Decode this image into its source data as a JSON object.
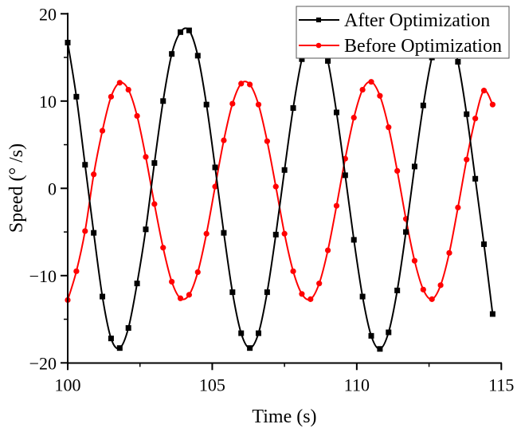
{
  "chart_data": {
    "type": "line",
    "title": "",
    "xlabel": "Time (s)",
    "ylabel": "Speed (° /s)",
    "xlim": [
      100,
      115
    ],
    "ylim": [
      -20,
      20
    ],
    "xticks": [
      100,
      105,
      110,
      115
    ],
    "xtick_labels": [
      "100",
      "105",
      "110",
      "115"
    ],
    "xminor_ticks": [
      102.5,
      107.5,
      112.5
    ],
    "yticks": [
      -20,
      -10,
      0,
      10,
      20
    ],
    "ytick_labels": [
      "−20",
      "−10",
      "0",
      "10",
      "20"
    ],
    "yminor_ticks": [
      -15,
      -5,
      5,
      15
    ],
    "grid": false,
    "legend_position": "top-right",
    "x": [
      100.0,
      100.3,
      100.6,
      100.9,
      101.2,
      101.5,
      101.8,
      102.1,
      102.4,
      102.7,
      103.0,
      103.3,
      103.6,
      103.9,
      104.2,
      104.5,
      104.8,
      105.1,
      105.4,
      105.7,
      106.0,
      106.3,
      106.6,
      106.9,
      107.2,
      107.5,
      107.8,
      108.1,
      108.4,
      108.7,
      109.0,
      109.3,
      109.6,
      109.9,
      110.2,
      110.5,
      110.8,
      111.1,
      111.4,
      111.7,
      112.0,
      112.3,
      112.6,
      112.9,
      113.2,
      113.5,
      113.8,
      114.1,
      114.4,
      114.7
    ],
    "series": [
      {
        "name": "After Optimization",
        "color": "#000000",
        "marker": "square",
        "values": [
          16.7,
          10.5,
          2.7,
          -5.1,
          -12.4,
          -17.2,
          -18.3,
          -16.0,
          -10.9,
          -4.7,
          2.9,
          10.0,
          15.4,
          17.9,
          18.1,
          15.2,
          9.6,
          2.4,
          -5.1,
          -11.9,
          -16.6,
          -18.3,
          -16.6,
          -11.9,
          -5.3,
          2.1,
          9.2,
          14.8,
          17.9,
          17.8,
          14.6,
          8.7,
          1.5,
          -5.9,
          -12.4,
          -16.9,
          -18.4,
          -16.5,
          -11.7,
          -5.0,
          2.5,
          9.5,
          15.0,
          18.0,
          17.8,
          14.5,
          8.5,
          1.1,
          -6.4,
          -14.4
        ]
      },
      {
        "name": "Before Optimization",
        "color": "#ff0000",
        "marker": "circle",
        "values": [
          -12.8,
          -9.5,
          -4.9,
          1.6,
          6.6,
          10.5,
          12.1,
          11.3,
          8.3,
          3.6,
          -1.8,
          -6.8,
          -10.7,
          -12.6,
          -12.2,
          -9.6,
          -5.2,
          0.2,
          5.5,
          9.7,
          12.0,
          11.9,
          9.6,
          5.4,
          0.2,
          -5.2,
          -9.5,
          -12.1,
          -12.7,
          -10.9,
          -7.1,
          -2.0,
          3.4,
          8.1,
          11.3,
          12.2,
          10.6,
          7.0,
          2.0,
          -3.5,
          -8.3,
          -11.6,
          -12.7,
          -11.1,
          -7.4,
          -2.2,
          3.3,
          8.0,
          11.2,
          9.6
        ]
      }
    ]
  }
}
